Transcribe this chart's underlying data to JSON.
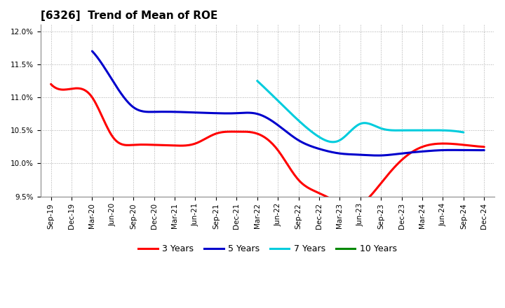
{
  "title": "[6326]  Trend of Mean of ROE",
  "xlabels": [
    "Sep-19",
    "Dec-19",
    "Mar-20",
    "Jun-20",
    "Sep-20",
    "Dec-20",
    "Mar-21",
    "Jun-21",
    "Sep-21",
    "Dec-21",
    "Mar-22",
    "Jun-22",
    "Sep-22",
    "Dec-22",
    "Mar-23",
    "Jun-23",
    "Sep-23",
    "Dec-23",
    "Mar-24",
    "Jun-24",
    "Sep-24",
    "Dec-24"
  ],
  "ylim": [
    0.095,
    0.121
  ],
  "yticks": [
    0.095,
    0.1,
    0.105,
    0.11,
    0.115,
    0.12
  ],
  "yticklabels": [
    "9.5%",
    "10.0%",
    "10.5%",
    "11.0%",
    "11.5%",
    "12.0%"
  ],
  "series": {
    "3 Years": {
      "color": "#ff0000",
      "data": [
        0.112,
        0.1113,
        0.11,
        0.104,
        0.1028,
        0.1028,
        0.1027,
        0.103,
        0.1045,
        0.1048,
        0.1045,
        0.102,
        0.0975,
        0.0955,
        0.094,
        0.0938,
        0.097,
        0.1005,
        0.1025,
        0.103,
        0.1028,
        0.1025
      ]
    },
    "5 Years": {
      "color": "#0000cc",
      "data": [
        null,
        null,
        0.117,
        0.1125,
        0.1085,
        0.1078,
        0.1078,
        0.1077,
        0.1076,
        0.1076,
        0.1075,
        0.1058,
        0.1035,
        0.1022,
        0.1015,
        0.1013,
        0.1012,
        0.1015,
        0.1018,
        0.102,
        0.102,
        0.102
      ]
    },
    "7 Years": {
      "color": "#00ccdd",
      "data": [
        null,
        null,
        null,
        null,
        null,
        null,
        null,
        null,
        null,
        null,
        0.1125,
        0.1095,
        0.1065,
        0.104,
        0.1035,
        0.106,
        0.1053,
        0.105,
        0.105,
        0.105,
        0.1047,
        null
      ]
    },
    "10 Years": {
      "color": "#008800",
      "data": [
        null,
        null,
        null,
        null,
        null,
        null,
        null,
        null,
        null,
        null,
        null,
        null,
        null,
        null,
        null,
        null,
        null,
        null,
        null,
        null,
        null,
        null
      ]
    }
  },
  "legend_order": [
    "3 Years",
    "5 Years",
    "7 Years",
    "10 Years"
  ],
  "background_color": "#ffffff",
  "plot_bg_color": "#ffffff",
  "grid_color": "#aaaaaa",
  "title_fontsize": 11,
  "tick_fontsize": 7.5,
  "legend_fontsize": 9,
  "linewidth": 2.2
}
